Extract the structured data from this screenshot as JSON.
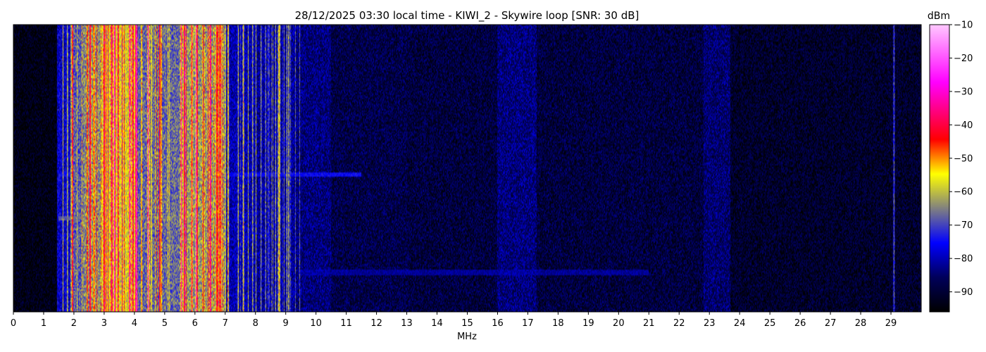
{
  "chart_data": {
    "type": "heatmap",
    "title": "28/12/2025 03:30 local time - KIWI_2 - Skywire loop [SNR: 30 dB]",
    "xlabel": "MHz",
    "xlim": [
      0,
      30
    ],
    "x_ticks": [
      "0",
      "1",
      "2",
      "3",
      "4",
      "5",
      "6",
      "7",
      "8",
      "9",
      "10",
      "11",
      "12",
      "13",
      "14",
      "15",
      "16",
      "17",
      "18",
      "19",
      "20",
      "21",
      "22",
      "23",
      "24",
      "25",
      "26",
      "27",
      "28",
      "29"
    ],
    "colorbar": {
      "label": "dBm",
      "range": [
        -96,
        -10
      ],
      "ticks": [
        "−10",
        "−20",
        "−30",
        "−40",
        "−50",
        "−60",
        "−70",
        "−80",
        "−90"
      ],
      "tick_values": [
        -10,
        -20,
        -30,
        -40,
        -50,
        -60,
        -70,
        -80,
        -90
      ],
      "colors": [
        "#000000",
        "#00005a",
        "#0000ff",
        "#808080",
        "#ffff00",
        "#ff0000",
        "#ff00ff",
        "#ffc8ff"
      ]
    },
    "noise_floor_dbm": -92,
    "bands": [
      {
        "mhz": [
          0.0,
          1.45
        ],
        "level_dbm": -94
      },
      {
        "mhz": [
          1.45,
          1.9
        ],
        "level_dbm": -78
      },
      {
        "mhz": [
          1.9,
          2.3
        ],
        "level_dbm": -68
      },
      {
        "mhz": [
          2.3,
          2.9
        ],
        "level_dbm": -64
      },
      {
        "mhz": [
          2.9,
          4.1
        ],
        "level_dbm": -58
      },
      {
        "mhz": [
          4.1,
          5.5
        ],
        "level_dbm": -67
      },
      {
        "mhz": [
          5.5,
          7.0
        ],
        "level_dbm": -63
      },
      {
        "mhz": [
          7.0,
          8.0
        ],
        "level_dbm": -80
      },
      {
        "mhz": [
          8.0,
          9.3
        ],
        "level_dbm": -82
      },
      {
        "mhz": [
          9.3,
          10.5
        ],
        "level_dbm": -84
      },
      {
        "mhz": [
          10.5,
          13.0
        ],
        "level_dbm": -88
      },
      {
        "mhz": [
          13.0,
          16.0
        ],
        "level_dbm": -89
      },
      {
        "mhz": [
          16.0,
          17.3
        ],
        "level_dbm": -84
      },
      {
        "mhz": [
          17.3,
          22.8
        ],
        "level_dbm": -89
      },
      {
        "mhz": [
          22.8,
          23.7
        ],
        "level_dbm": -85
      },
      {
        "mhz": [
          23.7,
          30.0
        ],
        "level_dbm": -91
      }
    ],
    "strong_channels_mhz": [
      1.95,
      2.55,
      3.0,
      3.25,
      3.35,
      3.85,
      3.95,
      4.05,
      4.45,
      4.85,
      5.55,
      5.65,
      5.9,
      6.05,
      6.5,
      6.75,
      6.85,
      7.1,
      7.6,
      8.8,
      9.1,
      29.1
    ],
    "horizontal_traces": [
      {
        "mhz": [
          2.2,
          5.2
        ],
        "time_frac": 0.23,
        "level_dbm": -70
      },
      {
        "mhz": [
          1.5,
          6.0
        ],
        "time_frac": 0.67,
        "level_dbm": -68
      },
      {
        "mhz": [
          1.5,
          11.5
        ],
        "time_frac": 0.52,
        "level_dbm": -75
      },
      {
        "mhz": [
          9.4,
          21.0
        ],
        "time_frac": 0.86,
        "level_dbm": -82
      }
    ]
  }
}
